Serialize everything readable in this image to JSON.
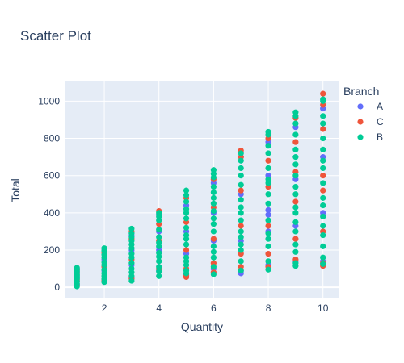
{
  "chart_data": {
    "type": "scatter",
    "title": "Scatter Plot",
    "xlabel": "Quantity",
    "ylabel": "Total",
    "xlim": [
      0.55,
      10.6
    ],
    "ylim": [
      -60,
      1110
    ],
    "xticks": [
      2,
      4,
      6,
      8,
      10
    ],
    "yticks": [
      0,
      200,
      400,
      600,
      800,
      1000
    ],
    "grid": true,
    "background": "#e5ecf6",
    "legend": {
      "title": "Branch",
      "placement": "right"
    },
    "series": [
      {
        "name": "A",
        "color": "#636efa",
        "points": [
          [
            1,
            15
          ],
          [
            1,
            35
          ],
          [
            1,
            55
          ],
          [
            1,
            80
          ],
          [
            1,
            100
          ],
          [
            2,
            40
          ],
          [
            2,
            90
          ],
          [
            2,
            150
          ],
          [
            2,
            200
          ],
          [
            3,
            50
          ],
          [
            3,
            120
          ],
          [
            3,
            200
          ],
          [
            3,
            280
          ],
          [
            4,
            90
          ],
          [
            4,
            200
          ],
          [
            4,
            300
          ],
          [
            4,
            390
          ],
          [
            5,
            70
          ],
          [
            5,
            180
          ],
          [
            5,
            300
          ],
          [
            5,
            440
          ],
          [
            6,
            100
          ],
          [
            6,
            250
          ],
          [
            6,
            400
          ],
          [
            6,
            560
          ],
          [
            7,
            75
          ],
          [
            7,
            88
          ],
          [
            7,
            250
          ],
          [
            7,
            500
          ],
          [
            7,
            700
          ],
          [
            8,
            120
          ],
          [
            8,
            300
          ],
          [
            8,
            390
          ],
          [
            8,
            415
          ],
          [
            8,
            600
          ],
          [
            8,
            780
          ],
          [
            9,
            140
          ],
          [
            9,
            330
          ],
          [
            9,
            580
          ],
          [
            9,
            860
          ],
          [
            10,
            140
          ],
          [
            10,
            400
          ],
          [
            10,
            700
          ],
          [
            10,
            960
          ]
        ]
      },
      {
        "name": "C",
        "color": "#ef553b",
        "points": [
          [
            1,
            10
          ],
          [
            1,
            40
          ],
          [
            1,
            75
          ],
          [
            1,
            95
          ],
          [
            2,
            35
          ],
          [
            2,
            110
          ],
          [
            2,
            185
          ],
          [
            3,
            45
          ],
          [
            3,
            150
          ],
          [
            3,
            260
          ],
          [
            3,
            300
          ],
          [
            4,
            100
          ],
          [
            4,
            250
          ],
          [
            4,
            340
          ],
          [
            4,
            410
          ],
          [
            5,
            55
          ],
          [
            5,
            62
          ],
          [
            5,
            100
          ],
          [
            5,
            200
          ],
          [
            5,
            350
          ],
          [
            5,
            480
          ],
          [
            6,
            80
          ],
          [
            6,
            130
          ],
          [
            6,
            260
          ],
          [
            6,
            430
          ],
          [
            6,
            580
          ],
          [
            7,
            110
          ],
          [
            7,
            180
          ],
          [
            7,
            330
          ],
          [
            7,
            520
          ],
          [
            7,
            700
          ],
          [
            7,
            735
          ],
          [
            8,
            110
          ],
          [
            8,
            180
          ],
          [
            8,
            330
          ],
          [
            8,
            540
          ],
          [
            8,
            680
          ],
          [
            8,
            800
          ],
          [
            9,
            150
          ],
          [
            9,
            260
          ],
          [
            9,
            460
          ],
          [
            9,
            620
          ],
          [
            9,
            780
          ],
          [
            9,
            910
          ],
          [
            10,
            115
          ],
          [
            10,
            130
          ],
          [
            10,
            300
          ],
          [
            10,
            520
          ],
          [
            10,
            600
          ],
          [
            10,
            850
          ],
          [
            10,
            980
          ],
          [
            10,
            1040
          ]
        ]
      },
      {
        "name": "B",
        "color": "#00cc96",
        "points": [
          [
            1,
            5
          ],
          [
            1,
            20
          ],
          [
            1,
            30
          ],
          [
            1,
            45
          ],
          [
            1,
            50
          ],
          [
            1,
            60
          ],
          [
            1,
            65
          ],
          [
            1,
            70
          ],
          [
            1,
            85
          ],
          [
            1,
            90
          ],
          [
            1,
            98
          ],
          [
            1,
            105
          ],
          [
            2,
            28
          ],
          [
            2,
            45
          ],
          [
            2,
            60
          ],
          [
            2,
            75
          ],
          [
            2,
            95
          ],
          [
            2,
            120
          ],
          [
            2,
            135
          ],
          [
            2,
            160
          ],
          [
            2,
            175
          ],
          [
            2,
            195
          ],
          [
            2,
            210
          ],
          [
            3,
            35
          ],
          [
            3,
            60
          ],
          [
            3,
            80
          ],
          [
            3,
            100
          ],
          [
            3,
            130
          ],
          [
            3,
            160
          ],
          [
            3,
            180
          ],
          [
            3,
            210
          ],
          [
            3,
            230
          ],
          [
            3,
            250
          ],
          [
            3,
            270
          ],
          [
            3,
            290
          ],
          [
            3,
            315
          ],
          [
            4,
            60
          ],
          [
            4,
            85
          ],
          [
            4,
            110
          ],
          [
            4,
            140
          ],
          [
            4,
            165
          ],
          [
            4,
            185
          ],
          [
            4,
            220
          ],
          [
            4,
            240
          ],
          [
            4,
            270
          ],
          [
            4,
            310
          ],
          [
            4,
            360
          ],
          [
            4,
            380
          ],
          [
            4,
            400
          ],
          [
            5,
            75
          ],
          [
            5,
            90
          ],
          [
            5,
            120
          ],
          [
            5,
            140
          ],
          [
            5,
            160
          ],
          [
            5,
            230
          ],
          [
            5,
            260
          ],
          [
            5,
            280
          ],
          [
            5,
            320
          ],
          [
            5,
            370
          ],
          [
            5,
            400
          ],
          [
            5,
            420
          ],
          [
            5,
            460
          ],
          [
            5,
            495
          ],
          [
            5,
            520
          ],
          [
            6,
            70
          ],
          [
            6,
            110
          ],
          [
            6,
            160
          ],
          [
            6,
            190
          ],
          [
            6,
            220
          ],
          [
            6,
            300
          ],
          [
            6,
            340
          ],
          [
            6,
            370
          ],
          [
            6,
            410
          ],
          [
            6,
            450
          ],
          [
            6,
            480
          ],
          [
            6,
            510
          ],
          [
            6,
            540
          ],
          [
            6,
            590
          ],
          [
            6,
            610
          ],
          [
            6,
            630
          ],
          [
            7,
            90
          ],
          [
            7,
            140
          ],
          [
            7,
            200
          ],
          [
            7,
            230
          ],
          [
            7,
            270
          ],
          [
            7,
            300
          ],
          [
            7,
            360
          ],
          [
            7,
            400
          ],
          [
            7,
            430
          ],
          [
            7,
            470
          ],
          [
            7,
            550
          ],
          [
            7,
            600
          ],
          [
            7,
            640
          ],
          [
            7,
            680
          ],
          [
            7,
            720
          ],
          [
            8,
            95
          ],
          [
            8,
            140
          ],
          [
            8,
            220
          ],
          [
            8,
            260
          ],
          [
            8,
            290
          ],
          [
            8,
            360
          ],
          [
            8,
            450
          ],
          [
            8,
            500
          ],
          [
            8,
            560
          ],
          [
            8,
            580
          ],
          [
            8,
            640
          ],
          [
            8,
            720
          ],
          [
            8,
            760
          ],
          [
            8,
            820
          ],
          [
            8,
            835
          ],
          [
            9,
            115
          ],
          [
            9,
            130
          ],
          [
            9,
            190
          ],
          [
            9,
            230
          ],
          [
            9,
            300
          ],
          [
            9,
            350
          ],
          [
            9,
            400
          ],
          [
            9,
            430
          ],
          [
            9,
            500
          ],
          [
            9,
            540
          ],
          [
            9,
            600
          ],
          [
            9,
            660
          ],
          [
            9,
            700
          ],
          [
            9,
            740
          ],
          [
            9,
            820
          ],
          [
            9,
            880
          ],
          [
            9,
            920
          ],
          [
            9,
            940
          ],
          [
            10,
            125
          ],
          [
            10,
            160
          ],
          [
            10,
            220
          ],
          [
            10,
            280
          ],
          [
            10,
            330
          ],
          [
            10,
            380
          ],
          [
            10,
            440
          ],
          [
            10,
            480
          ],
          [
            10,
            560
          ],
          [
            10,
            640
          ],
          [
            10,
            680
          ],
          [
            10,
            740
          ],
          [
            10,
            800
          ],
          [
            10,
            880
          ],
          [
            10,
            920
          ],
          [
            10,
            1000
          ],
          [
            10,
            1010
          ]
        ]
      }
    ]
  }
}
